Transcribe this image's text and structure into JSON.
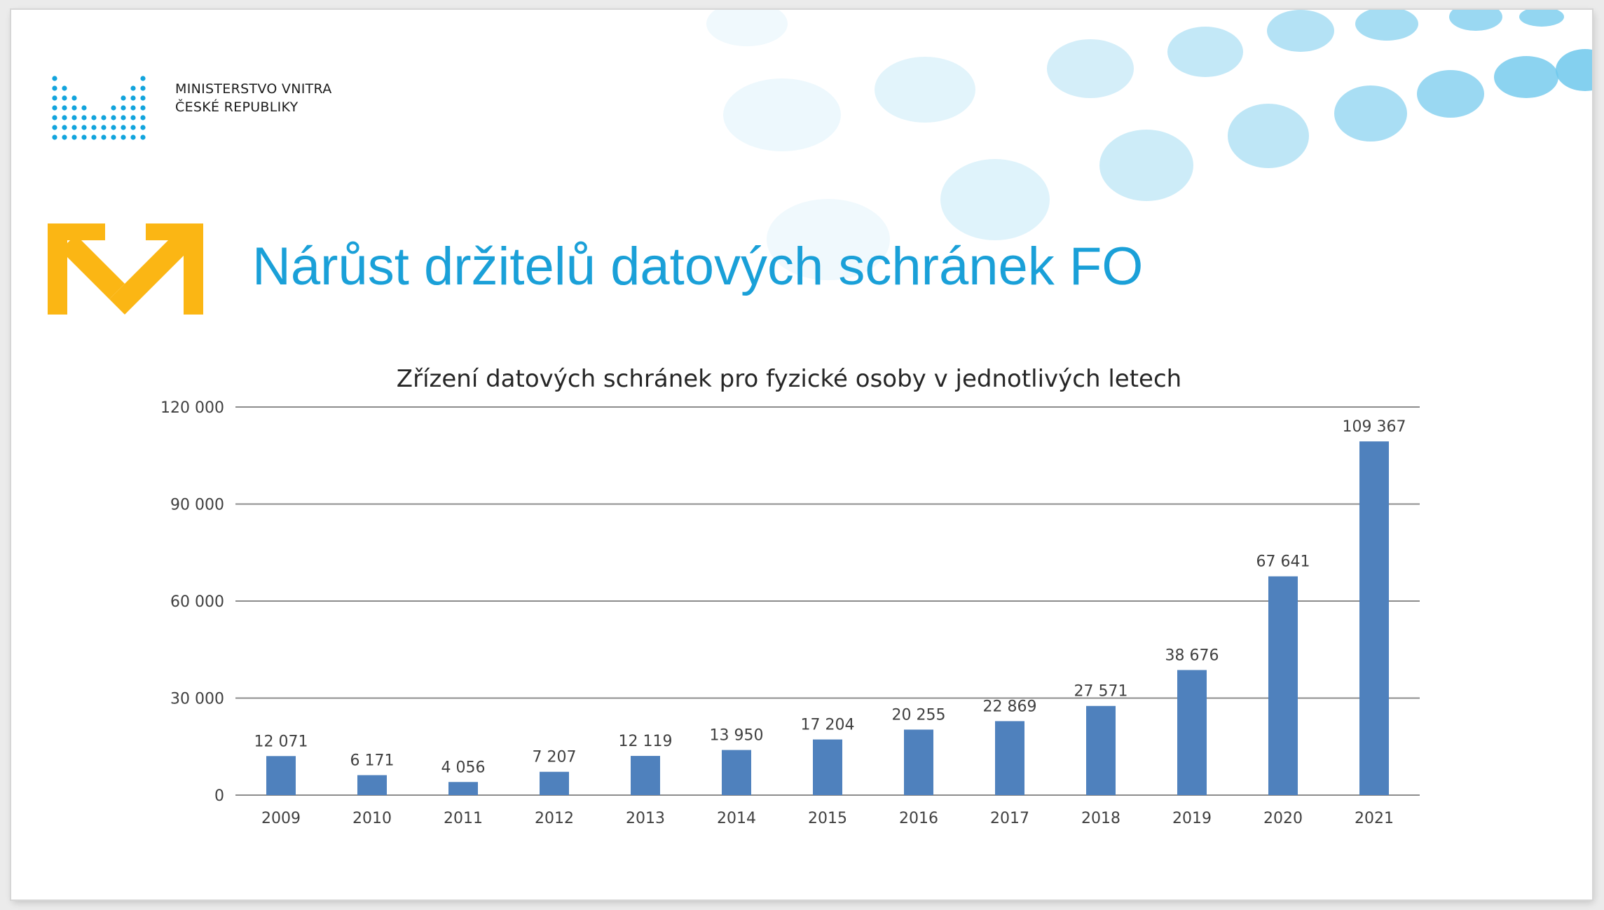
{
  "header": {
    "org_line1": "MINISTERSTVO VNITRA",
    "org_line2": "ČESKÉ REPUBLIKY",
    "title": "Nárůst držitelů datových schránek FO"
  },
  "colors": {
    "title": "#1aa0d8",
    "bar": "#4f81bd",
    "logo_dots": "#12a4dd",
    "databox_logo": "#fbb614",
    "bubble": "#6fc8ec"
  },
  "icons": {
    "ministry_logo": "mv-cr-dot-logo",
    "databox_logo": "datove-schranky-envelope-logo"
  },
  "chart_data": {
    "type": "bar",
    "title": "Zřízení datových schránek pro fyzické osoby v jednotlivých letech",
    "categories": [
      "2009",
      "2010",
      "2011",
      "2012",
      "2013",
      "2014",
      "2015",
      "2016",
      "2017",
      "2018",
      "2019",
      "2020",
      "2021"
    ],
    "values": [
      12071,
      6171,
      4056,
      7207,
      12119,
      13950,
      17204,
      20255,
      22869,
      27571,
      38676,
      67641,
      109367
    ],
    "value_labels": [
      "12 071",
      "6 171",
      "4 056",
      "7 207",
      "12 119",
      "13 950",
      "17 204",
      "20 255",
      "22 869",
      "27 571",
      "38 676",
      "67 641",
      "109 367"
    ],
    "ylim": [
      0,
      120000
    ],
    "yticks": [
      0,
      30000,
      60000,
      90000,
      120000
    ],
    "ytick_labels": [
      "0",
      "30 000",
      "60 000",
      "90 000",
      "120 000"
    ],
    "xlabel": "",
    "ylabel": "",
    "grid": true,
    "legend": "none"
  }
}
